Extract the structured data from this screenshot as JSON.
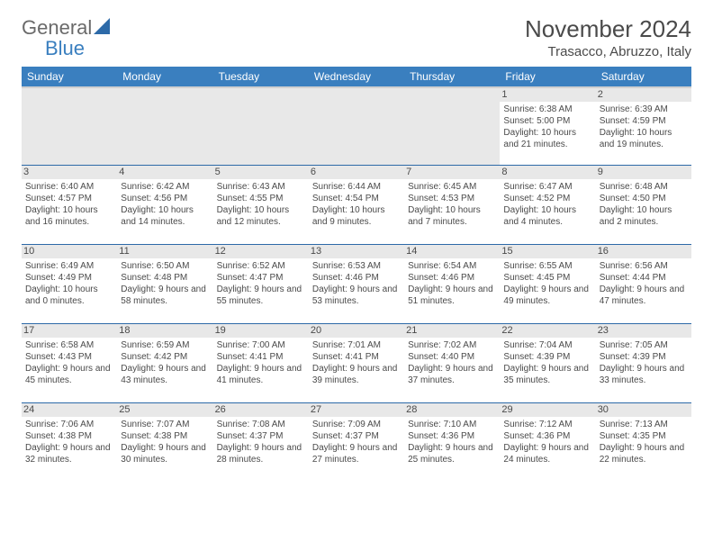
{
  "logo": {
    "text1": "General",
    "text2": "Blue"
  },
  "title": "November 2024",
  "location": "Trasacco, Abruzzo, Italy",
  "colors": {
    "header_bg": "#3a7fbf",
    "header_text": "#ffffff",
    "row_border": "#2d6aa8",
    "daynum_bg": "#e8e8e8",
    "text": "#4a4a4a",
    "logo_gray": "#6a6a6a",
    "logo_blue": "#3a7fbf"
  },
  "weekdays": [
    "Sunday",
    "Monday",
    "Tuesday",
    "Wednesday",
    "Thursday",
    "Friday",
    "Saturday"
  ],
  "weeks": [
    [
      null,
      null,
      null,
      null,
      null,
      {
        "num": "1",
        "sunrise": "6:38 AM",
        "sunset": "5:00 PM",
        "daylight": "10 hours and 21 minutes."
      },
      {
        "num": "2",
        "sunrise": "6:39 AM",
        "sunset": "4:59 PM",
        "daylight": "10 hours and 19 minutes."
      }
    ],
    [
      {
        "num": "3",
        "sunrise": "6:40 AM",
        "sunset": "4:57 PM",
        "daylight": "10 hours and 16 minutes."
      },
      {
        "num": "4",
        "sunrise": "6:42 AM",
        "sunset": "4:56 PM",
        "daylight": "10 hours and 14 minutes."
      },
      {
        "num": "5",
        "sunrise": "6:43 AM",
        "sunset": "4:55 PM",
        "daylight": "10 hours and 12 minutes."
      },
      {
        "num": "6",
        "sunrise": "6:44 AM",
        "sunset": "4:54 PM",
        "daylight": "10 hours and 9 minutes."
      },
      {
        "num": "7",
        "sunrise": "6:45 AM",
        "sunset": "4:53 PM",
        "daylight": "10 hours and 7 minutes."
      },
      {
        "num": "8",
        "sunrise": "6:47 AM",
        "sunset": "4:52 PM",
        "daylight": "10 hours and 4 minutes."
      },
      {
        "num": "9",
        "sunrise": "6:48 AM",
        "sunset": "4:50 PM",
        "daylight": "10 hours and 2 minutes."
      }
    ],
    [
      {
        "num": "10",
        "sunrise": "6:49 AM",
        "sunset": "4:49 PM",
        "daylight": "10 hours and 0 minutes."
      },
      {
        "num": "11",
        "sunrise": "6:50 AM",
        "sunset": "4:48 PM",
        "daylight": "9 hours and 58 minutes."
      },
      {
        "num": "12",
        "sunrise": "6:52 AM",
        "sunset": "4:47 PM",
        "daylight": "9 hours and 55 minutes."
      },
      {
        "num": "13",
        "sunrise": "6:53 AM",
        "sunset": "4:46 PM",
        "daylight": "9 hours and 53 minutes."
      },
      {
        "num": "14",
        "sunrise": "6:54 AM",
        "sunset": "4:46 PM",
        "daylight": "9 hours and 51 minutes."
      },
      {
        "num": "15",
        "sunrise": "6:55 AM",
        "sunset": "4:45 PM",
        "daylight": "9 hours and 49 minutes."
      },
      {
        "num": "16",
        "sunrise": "6:56 AM",
        "sunset": "4:44 PM",
        "daylight": "9 hours and 47 minutes."
      }
    ],
    [
      {
        "num": "17",
        "sunrise": "6:58 AM",
        "sunset": "4:43 PM",
        "daylight": "9 hours and 45 minutes."
      },
      {
        "num": "18",
        "sunrise": "6:59 AM",
        "sunset": "4:42 PM",
        "daylight": "9 hours and 43 minutes."
      },
      {
        "num": "19",
        "sunrise": "7:00 AM",
        "sunset": "4:41 PM",
        "daylight": "9 hours and 41 minutes."
      },
      {
        "num": "20",
        "sunrise": "7:01 AM",
        "sunset": "4:41 PM",
        "daylight": "9 hours and 39 minutes."
      },
      {
        "num": "21",
        "sunrise": "7:02 AM",
        "sunset": "4:40 PM",
        "daylight": "9 hours and 37 minutes."
      },
      {
        "num": "22",
        "sunrise": "7:04 AM",
        "sunset": "4:39 PM",
        "daylight": "9 hours and 35 minutes."
      },
      {
        "num": "23",
        "sunrise": "7:05 AM",
        "sunset": "4:39 PM",
        "daylight": "9 hours and 33 minutes."
      }
    ],
    [
      {
        "num": "24",
        "sunrise": "7:06 AM",
        "sunset": "4:38 PM",
        "daylight": "9 hours and 32 minutes."
      },
      {
        "num": "25",
        "sunrise": "7:07 AM",
        "sunset": "4:38 PM",
        "daylight": "9 hours and 30 minutes."
      },
      {
        "num": "26",
        "sunrise": "7:08 AM",
        "sunset": "4:37 PM",
        "daylight": "9 hours and 28 minutes."
      },
      {
        "num": "27",
        "sunrise": "7:09 AM",
        "sunset": "4:37 PM",
        "daylight": "9 hours and 27 minutes."
      },
      {
        "num": "28",
        "sunrise": "7:10 AM",
        "sunset": "4:36 PM",
        "daylight": "9 hours and 25 minutes."
      },
      {
        "num": "29",
        "sunrise": "7:12 AM",
        "sunset": "4:36 PM",
        "daylight": "9 hours and 24 minutes."
      },
      {
        "num": "30",
        "sunrise": "7:13 AM",
        "sunset": "4:35 PM",
        "daylight": "9 hours and 22 minutes."
      }
    ]
  ],
  "labels": {
    "sunrise": "Sunrise:",
    "sunset": "Sunset:",
    "daylight": "Daylight:"
  }
}
